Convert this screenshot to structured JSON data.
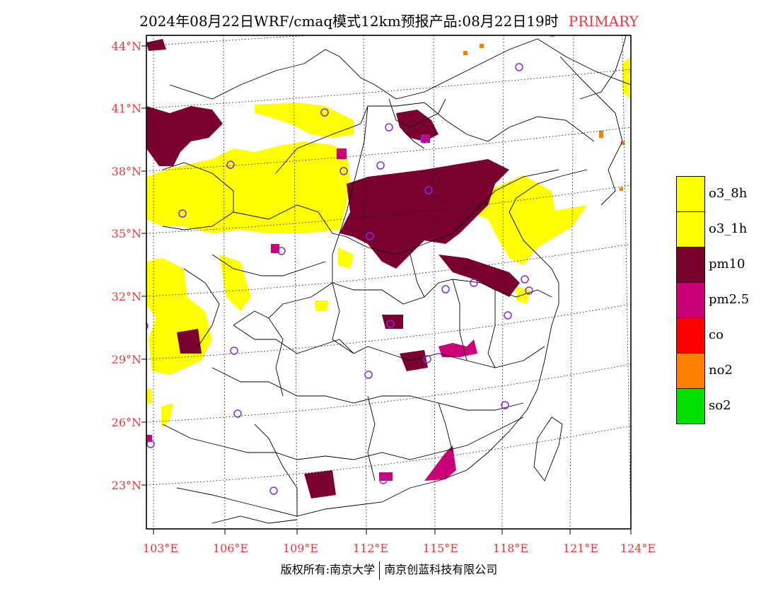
{
  "title": {
    "text": "2024年08月22日WRF/cmaq模式12km预报产品:08月22日19时",
    "tag": "PRIMARY"
  },
  "map": {
    "lat_labels": [
      "44°N",
      "41°N",
      "38°N",
      "35°N",
      "32°N",
      "29°N",
      "26°N",
      "23°N"
    ],
    "lon_labels": [
      "103°E",
      "106°E",
      "109°E",
      "112°E",
      "115°E",
      "118°E",
      "121°E",
      "124°E"
    ],
    "colors": {
      "o3_8h": "#ffff00",
      "o3_1h": "#ffff00",
      "pm10": "#7a0030",
      "pm25": "#cc0077",
      "co": "#ff0000",
      "no2": "#ff7f00",
      "so2": "#00e000",
      "station": "#7f2fdf",
      "label": "#e8393b"
    }
  },
  "legend": [
    {
      "label": "o3_8h",
      "color": "#ffff00"
    },
    {
      "label": "o3_1h",
      "color": "#ffff00"
    },
    {
      "label": "pm10",
      "color": "#7a0030"
    },
    {
      "label": "pm2.5",
      "color": "#cc0077"
    },
    {
      "label": "co",
      "color": "#ff0000"
    },
    {
      "label": "no2",
      "color": "#ff7f00"
    },
    {
      "label": "so2",
      "color": "#00e000"
    }
  ],
  "footer": {
    "left": "版权所有:南京大学",
    "right": "南京创蓝科技有限公司"
  }
}
